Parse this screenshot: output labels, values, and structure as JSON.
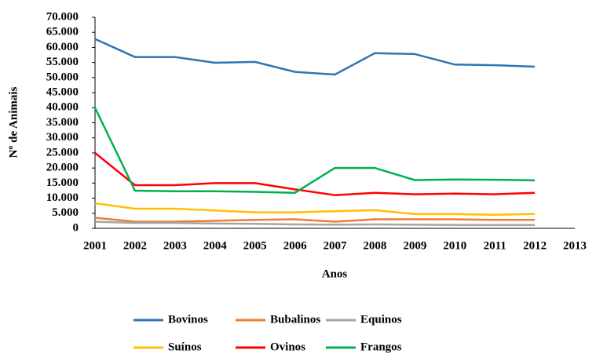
{
  "chart_data": {
    "type": "line",
    "x_label": "Anos",
    "y_label": "Nº de Animais",
    "categories": [
      "2001",
      "2002",
      "2003",
      "2004",
      "2005",
      "2006",
      "2007",
      "2008",
      "2009",
      "2010",
      "2011",
      "2012",
      "2013"
    ],
    "series": [
      {
        "name": "Bovinos",
        "color": "#2e75b6",
        "values": [
          62800,
          56800,
          56800,
          54900,
          55200,
          51900,
          51000,
          58100,
          57800,
          54300,
          54100,
          53600,
          null
        ]
      },
      {
        "name": "Bubalinos",
        "color": "#ed7d31",
        "values": [
          3500,
          2200,
          2200,
          2500,
          2800,
          3000,
          2200,
          3000,
          3000,
          3000,
          2800,
          2800,
          null
        ]
      },
      {
        "name": "Equinos",
        "color": "#a5a5a5",
        "values": [
          2200,
          1800,
          1800,
          1600,
          1500,
          1300,
          1200,
          1300,
          1200,
          1100,
          1100,
          1100,
          null
        ]
      },
      {
        "name": "Suínos",
        "color": "#ffc000",
        "values": [
          8300,
          6500,
          6500,
          5900,
          5300,
          5300,
          5700,
          6000,
          4700,
          4700,
          4500,
          4800,
          null
        ]
      },
      {
        "name": "Ovinos",
        "color": "#ff0000",
        "values": [
          25000,
          14300,
          14300,
          15000,
          15000,
          12900,
          11000,
          11800,
          11300,
          11500,
          11300,
          11800,
          null
        ]
      },
      {
        "name": "Frangos",
        "color": "#00b050",
        "values": [
          40000,
          12500,
          12300,
          12300,
          12100,
          11800,
          20000,
          20000,
          16000,
          16200,
          16100,
          15900,
          null
        ]
      }
    ],
    "ylim": [
      0,
      70000
    ],
    "yticks": [
      0,
      {
        "value": 5000,
        "label": "5.000"
      },
      {
        "value": 10000,
        "label": "10.000"
      },
      {
        "value": 15000,
        "label": "15.000"
      },
      {
        "value": 20000,
        "label": "20.000"
      },
      {
        "value": 25000,
        "label": "25.000"
      },
      {
        "value": 30000,
        "label": "30.000"
      },
      {
        "value": 35000,
        "label": "35.000"
      },
      {
        "value": 40000,
        "label": "40.000"
      },
      {
        "value": 45000,
        "label": "45.000"
      },
      {
        "value": 50000,
        "label": "50.000"
      },
      {
        "value": 55000,
        "label": "55.000"
      },
      {
        "value": 60000,
        "label": "60.000"
      },
      {
        "value": 65000,
        "label": "65.000"
      },
      {
        "value": 70000,
        "label": "70.000"
      }
    ],
    "grid": false,
    "legend": "bottom"
  }
}
